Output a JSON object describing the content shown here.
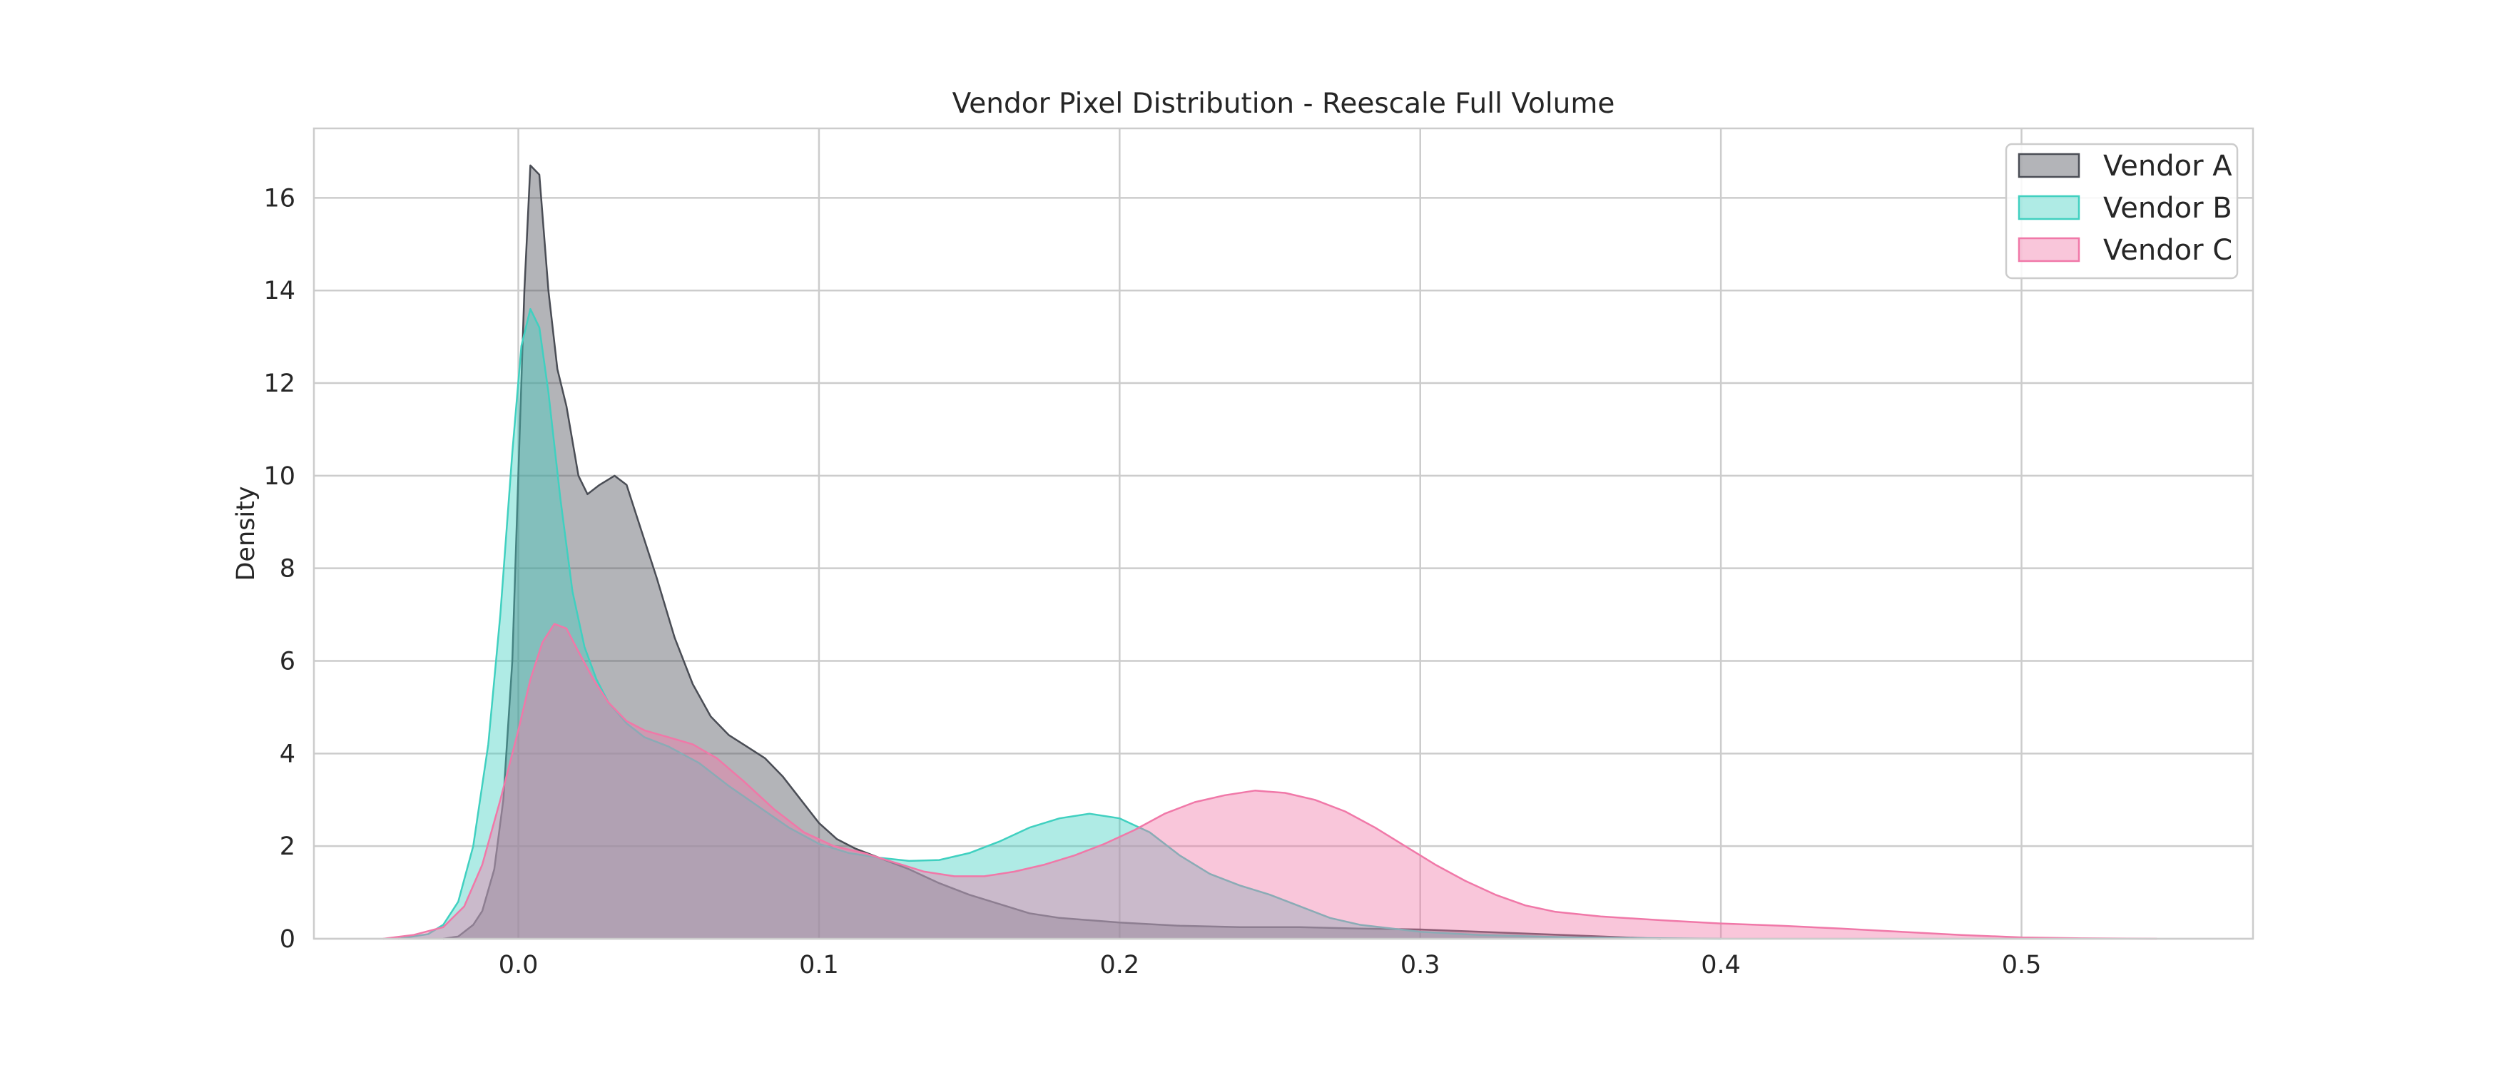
{
  "chart_data": {
    "type": "area",
    "title": "Vendor Pixel Distribution - Reescale Full Volume",
    "xlabel": "",
    "ylabel": "Density",
    "xlim": [
      -0.068,
      0.577
    ],
    "ylim": [
      0,
      17.5
    ],
    "x_ticks": [
      0.0,
      0.1,
      0.2,
      0.3,
      0.4,
      0.5
    ],
    "x_tick_labels": [
      "0.0",
      "0.1",
      "0.2",
      "0.3",
      "0.4",
      "0.5"
    ],
    "y_ticks": [
      0,
      2,
      4,
      6,
      8,
      10,
      12,
      14,
      16
    ],
    "y_tick_labels": [
      "0",
      "2",
      "4",
      "6",
      "8",
      "10",
      "12",
      "14",
      "16"
    ],
    "grid": true,
    "legend_position": "top-right",
    "series": [
      {
        "name": "Vendor A",
        "color": "#4a4d55",
        "points": [
          [
            -0.025,
            0.0
          ],
          [
            -0.02,
            0.05
          ],
          [
            -0.015,
            0.3
          ],
          [
            -0.012,
            0.6
          ],
          [
            -0.008,
            1.5
          ],
          [
            -0.005,
            3.0
          ],
          [
            -0.002,
            6.0
          ],
          [
            0.0,
            10.0
          ],
          [
            0.002,
            14.0
          ],
          [
            0.004,
            16.7
          ],
          [
            0.007,
            16.5
          ],
          [
            0.01,
            14.0
          ],
          [
            0.013,
            12.3
          ],
          [
            0.016,
            11.5
          ],
          [
            0.02,
            10.0
          ],
          [
            0.023,
            9.6
          ],
          [
            0.027,
            9.8
          ],
          [
            0.032,
            10.0
          ],
          [
            0.036,
            9.8
          ],
          [
            0.04,
            9.0
          ],
          [
            0.046,
            7.8
          ],
          [
            0.052,
            6.5
          ],
          [
            0.058,
            5.5
          ],
          [
            0.064,
            4.8
          ],
          [
            0.07,
            4.4
          ],
          [
            0.076,
            4.15
          ],
          [
            0.082,
            3.9
          ],
          [
            0.088,
            3.5
          ],
          [
            0.094,
            3.0
          ],
          [
            0.1,
            2.5
          ],
          [
            0.106,
            2.15
          ],
          [
            0.112,
            1.95
          ],
          [
            0.12,
            1.75
          ],
          [
            0.13,
            1.5
          ],
          [
            0.14,
            1.2
          ],
          [
            0.15,
            0.95
          ],
          [
            0.16,
            0.75
          ],
          [
            0.17,
            0.55
          ],
          [
            0.18,
            0.45
          ],
          [
            0.2,
            0.35
          ],
          [
            0.22,
            0.28
          ],
          [
            0.24,
            0.25
          ],
          [
            0.26,
            0.25
          ],
          [
            0.28,
            0.22
          ],
          [
            0.3,
            0.2
          ],
          [
            0.32,
            0.15
          ],
          [
            0.34,
            0.1
          ],
          [
            0.36,
            0.05
          ],
          [
            0.38,
            0.0
          ]
        ]
      },
      {
        "name": "Vendor B",
        "color": "#40d0c0",
        "points": [
          [
            -0.04,
            0.0
          ],
          [
            -0.03,
            0.1
          ],
          [
            -0.025,
            0.3
          ],
          [
            -0.02,
            0.8
          ],
          [
            -0.015,
            2.0
          ],
          [
            -0.01,
            4.2
          ],
          [
            -0.006,
            7.0
          ],
          [
            -0.002,
            10.5
          ],
          [
            0.001,
            12.8
          ],
          [
            0.004,
            13.6
          ],
          [
            0.007,
            13.2
          ],
          [
            0.01,
            11.8
          ],
          [
            0.014,
            9.5
          ],
          [
            0.018,
            7.5
          ],
          [
            0.022,
            6.3
          ],
          [
            0.026,
            5.6
          ],
          [
            0.03,
            5.1
          ],
          [
            0.036,
            4.65
          ],
          [
            0.042,
            4.35
          ],
          [
            0.05,
            4.15
          ],
          [
            0.06,
            3.8
          ],
          [
            0.07,
            3.3
          ],
          [
            0.08,
            2.85
          ],
          [
            0.09,
            2.4
          ],
          [
            0.1,
            2.05
          ],
          [
            0.11,
            1.85
          ],
          [
            0.12,
            1.75
          ],
          [
            0.13,
            1.68
          ],
          [
            0.14,
            1.7
          ],
          [
            0.15,
            1.85
          ],
          [
            0.16,
            2.1
          ],
          [
            0.17,
            2.4
          ],
          [
            0.18,
            2.6
          ],
          [
            0.19,
            2.7
          ],
          [
            0.2,
            2.6
          ],
          [
            0.21,
            2.3
          ],
          [
            0.22,
            1.8
          ],
          [
            0.23,
            1.4
          ],
          [
            0.24,
            1.15
          ],
          [
            0.25,
            0.95
          ],
          [
            0.26,
            0.7
          ],
          [
            0.27,
            0.45
          ],
          [
            0.28,
            0.3
          ],
          [
            0.3,
            0.15
          ],
          [
            0.32,
            0.08
          ],
          [
            0.35,
            0.03
          ],
          [
            0.4,
            0.0
          ]
        ]
      },
      {
        "name": "Vendor C",
        "color": "#f078a8",
        "points": [
          [
            -0.045,
            0.0
          ],
          [
            -0.035,
            0.08
          ],
          [
            -0.025,
            0.25
          ],
          [
            -0.018,
            0.7
          ],
          [
            -0.012,
            1.6
          ],
          [
            -0.006,
            3.0
          ],
          [
            0.0,
            4.5
          ],
          [
            0.004,
            5.6
          ],
          [
            0.008,
            6.4
          ],
          [
            0.012,
            6.8
          ],
          [
            0.016,
            6.7
          ],
          [
            0.02,
            6.2
          ],
          [
            0.025,
            5.6
          ],
          [
            0.03,
            5.1
          ],
          [
            0.036,
            4.7
          ],
          [
            0.042,
            4.5
          ],
          [
            0.05,
            4.35
          ],
          [
            0.058,
            4.2
          ],
          [
            0.066,
            3.9
          ],
          [
            0.075,
            3.4
          ],
          [
            0.085,
            2.8
          ],
          [
            0.095,
            2.3
          ],
          [
            0.105,
            2.0
          ],
          [
            0.115,
            1.85
          ],
          [
            0.125,
            1.65
          ],
          [
            0.135,
            1.45
          ],
          [
            0.145,
            1.35
          ],
          [
            0.155,
            1.35
          ],
          [
            0.165,
            1.45
          ],
          [
            0.175,
            1.6
          ],
          [
            0.185,
            1.8
          ],
          [
            0.195,
            2.05
          ],
          [
            0.205,
            2.35
          ],
          [
            0.215,
            2.7
          ],
          [
            0.225,
            2.95
          ],
          [
            0.235,
            3.1
          ],
          [
            0.245,
            3.2
          ],
          [
            0.255,
            3.15
          ],
          [
            0.265,
            3.0
          ],
          [
            0.275,
            2.75
          ],
          [
            0.285,
            2.4
          ],
          [
            0.295,
            2.0
          ],
          [
            0.305,
            1.6
          ],
          [
            0.315,
            1.25
          ],
          [
            0.325,
            0.95
          ],
          [
            0.335,
            0.72
          ],
          [
            0.345,
            0.58
          ],
          [
            0.36,
            0.48
          ],
          [
            0.38,
            0.4
          ],
          [
            0.4,
            0.33
          ],
          [
            0.42,
            0.28
          ],
          [
            0.44,
            0.22
          ],
          [
            0.46,
            0.15
          ],
          [
            0.48,
            0.08
          ],
          [
            0.5,
            0.03
          ],
          [
            0.52,
            0.01
          ],
          [
            0.545,
            0.0
          ]
        ]
      }
    ]
  }
}
